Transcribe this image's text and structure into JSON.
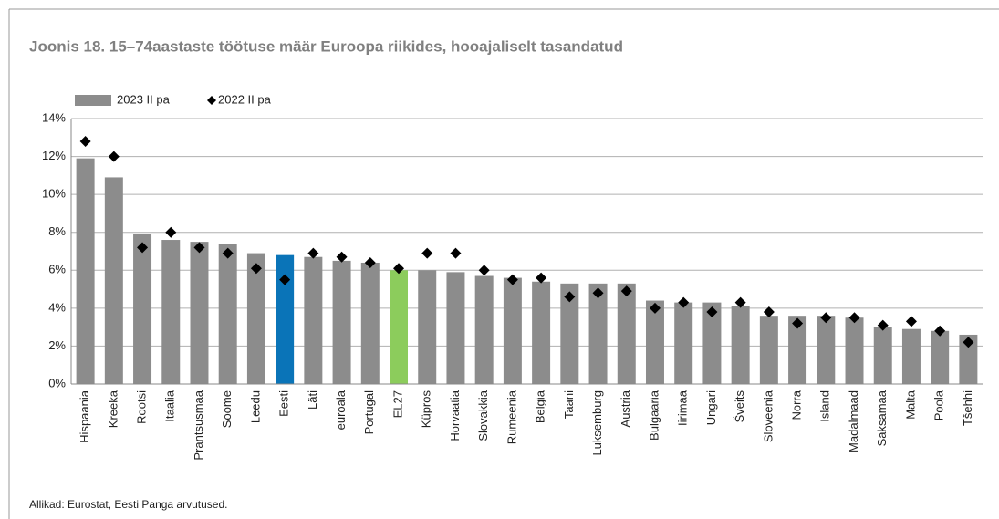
{
  "chart_data": {
    "type": "bar",
    "title": "Joonis 18. 15–74aastaste töötuse määr Euroopa riikides, hooajaliselt tasandatud",
    "source": "Allikad: Eurostat, Eesti Panga arvutused.",
    "categories": [
      "Hispaania",
      "Kreeka",
      "Rootsi",
      "Itaalia",
      "Prantsusmaa",
      "Soome",
      "Leedu",
      "Eesti",
      "Läti",
      "euroala",
      "Portugal",
      "EL27",
      "Küpros",
      "Horvaatia",
      "Slovakkia",
      "Rumeenia",
      "Belgia",
      "Taani",
      "Luksemburg",
      "Austria",
      "Bulgaaria",
      "Iirimaa",
      "Ungari",
      "Šveits",
      "Sloveenia",
      "Norra",
      "Island",
      "Madalmaad",
      "Saksamaa",
      "Malta",
      "Poola",
      "Tšehhi"
    ],
    "series": [
      {
        "name": "2023 II pa",
        "kind": "bar",
        "color": "#8c8c8c",
        "colors": [
          "#8c8c8c",
          "#8c8c8c",
          "#8c8c8c",
          "#8c8c8c",
          "#8c8c8c",
          "#8c8c8c",
          "#8c8c8c",
          "#0a74b8",
          "#8c8c8c",
          "#8c8c8c",
          "#8c8c8c",
          "#8ccc5c",
          "#8c8c8c",
          "#8c8c8c",
          "#8c8c8c",
          "#8c8c8c",
          "#8c8c8c",
          "#8c8c8c",
          "#8c8c8c",
          "#8c8c8c",
          "#8c8c8c",
          "#8c8c8c",
          "#8c8c8c",
          "#8c8c8c",
          "#8c8c8c",
          "#8c8c8c",
          "#8c8c8c",
          "#8c8c8c",
          "#8c8c8c",
          "#8c8c8c",
          "#8c8c8c",
          "#8c8c8c"
        ],
        "values": [
          11.9,
          10.9,
          7.9,
          7.6,
          7.5,
          7.4,
          6.9,
          6.8,
          6.7,
          6.5,
          6.4,
          6.0,
          6.0,
          5.9,
          5.7,
          5.6,
          5.4,
          5.3,
          5.3,
          5.3,
          4.4,
          4.3,
          4.3,
          4.1,
          3.6,
          3.6,
          3.6,
          3.5,
          3.0,
          2.9,
          2.8,
          2.6
        ]
      },
      {
        "name": "2022 II pa",
        "kind": "diamond",
        "color": "#000000",
        "values": [
          12.8,
          12.0,
          7.2,
          8.0,
          7.2,
          6.9,
          6.1,
          5.5,
          6.9,
          6.7,
          6.4,
          6.1,
          6.9,
          6.9,
          6.0,
          5.5,
          5.6,
          4.6,
          4.8,
          4.9,
          4.0,
          4.3,
          3.8,
          4.3,
          3.8,
          3.2,
          3.5,
          3.5,
          3.1,
          3.3,
          2.8,
          2.2
        ]
      }
    ],
    "ylim": [
      0,
      14
    ],
    "yticks": [
      {
        "value": 0,
        "label": "0%"
      },
      {
        "value": 2,
        "label": "2%"
      },
      {
        "value": 4,
        "label": "4%"
      },
      {
        "value": 6,
        "label": "6%"
      },
      {
        "value": 8,
        "label": "8%"
      },
      {
        "value": 10,
        "label": "10%"
      },
      {
        "value": 12,
        "label": "12%"
      },
      {
        "value": 14,
        "label": "14%"
      }
    ],
    "grid": true
  }
}
